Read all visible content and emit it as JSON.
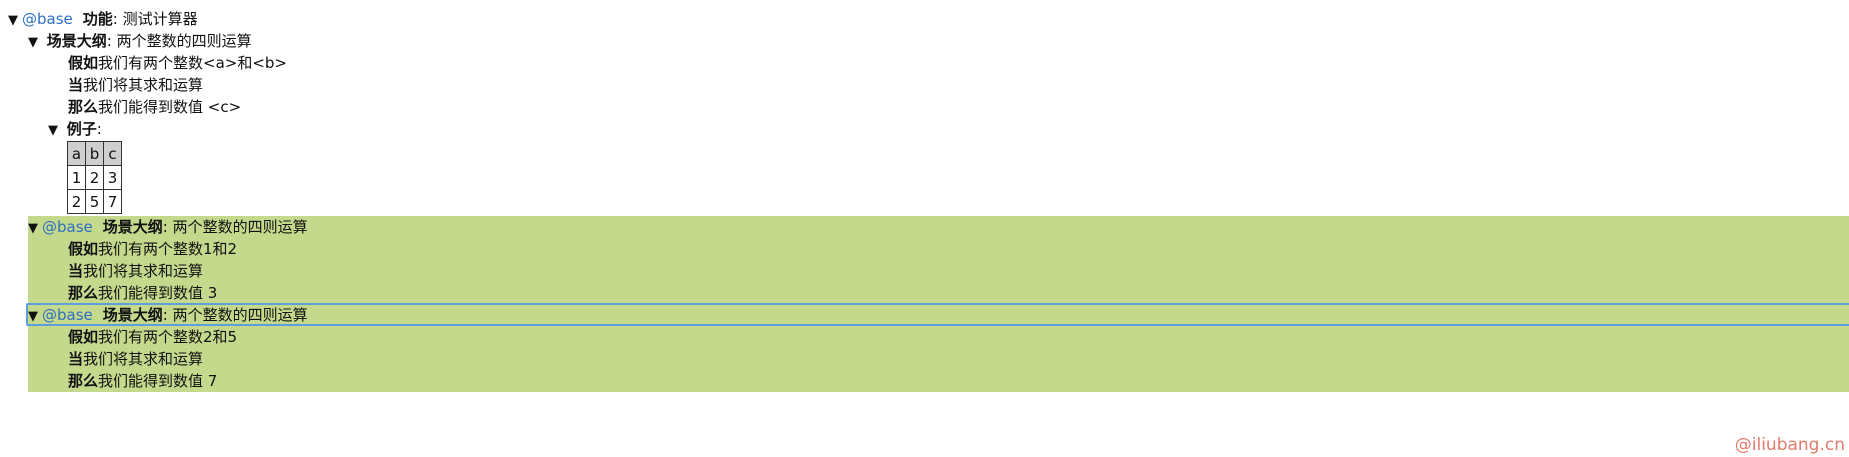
{
  "feature": {
    "toggle": "▼",
    "tag": "@base",
    "keyword": "功能",
    "title": ": 测试计算器"
  },
  "outline": {
    "toggle": "▼",
    "keyword": "场景大纲",
    "title": ": 两个整数的四则运算",
    "steps": [
      {
        "keyword": "假如",
        "text": "我们有两个整数<a>和<b>"
      },
      {
        "keyword": "当",
        "text": "我们将其求和运算"
      },
      {
        "keyword": "那么",
        "text": "我们能得到数值 <c>"
      }
    ],
    "examples": {
      "toggle": "▼",
      "keyword": "例子",
      "colon": ":",
      "headers": [
        "a",
        "b",
        "c"
      ],
      "rows": [
        [
          "1",
          "2",
          "3"
        ],
        [
          "2",
          "5",
          "7"
        ]
      ]
    }
  },
  "scenarios": [
    {
      "toggle": "▼",
      "tag": "@base",
      "keyword": "场景大纲",
      "title": ": 两个整数的四则运算",
      "steps": [
        {
          "keyword": "假如",
          "text": "我们有两个整数1和2"
        },
        {
          "keyword": "当",
          "text": "我们将其求和运算"
        },
        {
          "keyword": "那么",
          "text": "我们能得到数值 3"
        }
      ]
    },
    {
      "toggle": "▼",
      "tag": "@base",
      "keyword": "场景大纲",
      "title": ": 两个整数的四则运算",
      "steps": [
        {
          "keyword": "假如",
          "text": "我们有两个整数2和5"
        },
        {
          "keyword": "当",
          "text": "我们将其求和运算"
        },
        {
          "keyword": "那么",
          "text": "我们能得到数值 7"
        }
      ]
    }
  ],
  "colors": {
    "passed_background": "#c5d98d",
    "tag": "#2e6fc4",
    "selection_border": "#5b9fdc"
  },
  "watermark": "@iliubang.cn"
}
